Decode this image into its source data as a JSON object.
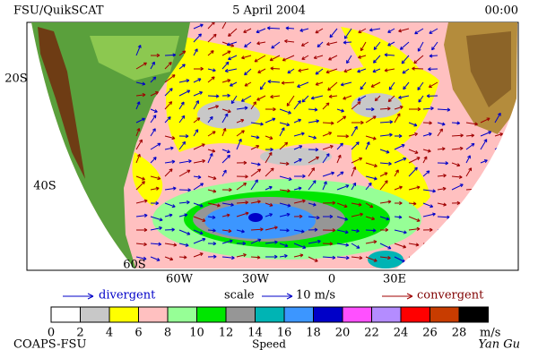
{
  "header": {
    "title": "FSU/QuikSCAT",
    "date": "5 April 2004",
    "time": "00:00"
  },
  "lat_labels": [
    "20S",
    "40S",
    "60S"
  ],
  "lon_labels": [
    "60W",
    "30W",
    "0",
    "30E"
  ],
  "legend": {
    "divergent": "divergent",
    "scale": "scale",
    "scale_value": "10 m/s",
    "convergent": "convergent"
  },
  "colorbar": {
    "labels": [
      "0",
      "2",
      "4",
      "6",
      "8",
      "10",
      "12",
      "14",
      "16",
      "18",
      "20",
      "22",
      "24",
      "26",
      "28"
    ],
    "unit": "m/s",
    "title": "Speed",
    "colors": [
      "#ffffff",
      "#c8c8c8",
      "#ffff00",
      "#ffc0c0",
      "#96ff96",
      "#00e600",
      "#969696",
      "#00b4b4",
      "#3c96ff",
      "#0000c8",
      "#ff50ff",
      "#b48cff",
      "#ff0000",
      "#c83c00",
      "#000000"
    ]
  },
  "footer": {
    "credit": "COAPS-FSU",
    "author": "Yan Gu"
  }
}
